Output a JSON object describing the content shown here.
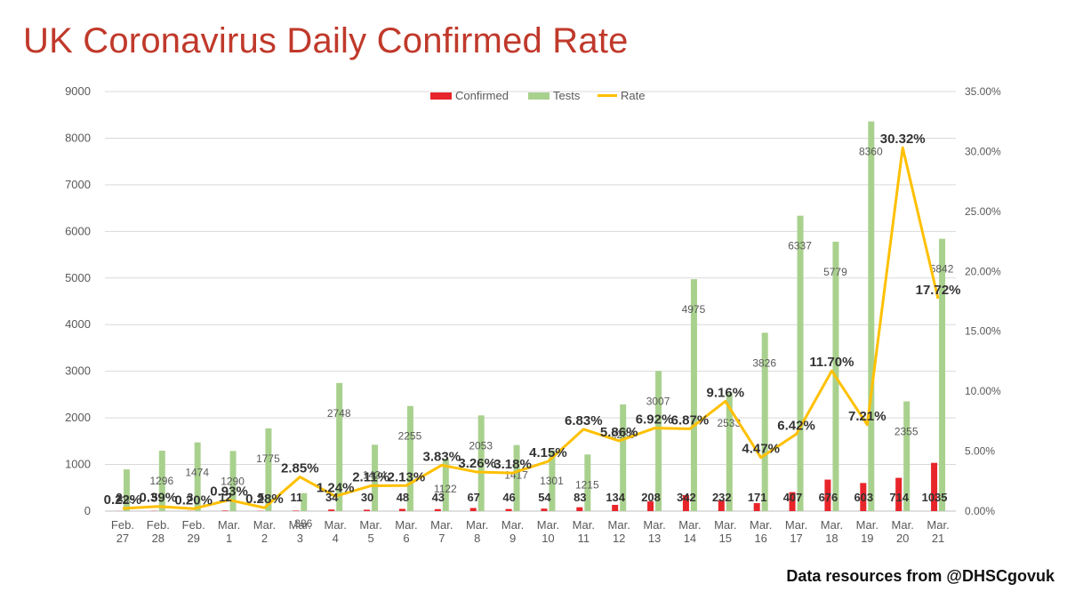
{
  "title": "UK Coronavirus Daily Confirmed Rate",
  "source": "Data resources from @DHSCgovuk",
  "colors": {
    "title": "#c0392b",
    "confirmed": "#e8252a",
    "tests": "#a9d18e",
    "rate": "#ffc000",
    "axis_text": "#595959",
    "grid": "#d9d9d9"
  },
  "chart_data": {
    "type": "bar",
    "categories": [
      "Feb. 27",
      "Feb. 28",
      "Feb. 29",
      "Mar. 1",
      "Mar. 2",
      "Mar. 3",
      "Mar. 4",
      "Mar. 5",
      "Mar. 6",
      "Mar. 7",
      "Mar. 8",
      "Mar. 9",
      "Mar. 10",
      "Mar. 11",
      "Mar. 12",
      "Mar. 13",
      "Mar. 14",
      "Mar. 15",
      "Mar. 16",
      "Mar. 17",
      "Mar. 18",
      "Mar. 19",
      "Mar. 20",
      "Mar. 21"
    ],
    "series": [
      {
        "name": "Confirmed",
        "type": "bar",
        "axis": "left",
        "values": [
          2,
          5,
          3,
          12,
          5,
          11,
          34,
          30,
          48,
          43,
          67,
          46,
          54,
          83,
          134,
          208,
          342,
          232,
          171,
          407,
          676,
          603,
          714,
          1035
        ],
        "labels": [
          "2",
          "5",
          "3",
          "12",
          "5",
          "11",
          "34",
          "30",
          "48",
          "43",
          "67",
          "46",
          "54",
          "83",
          "134",
          "208",
          "342",
          "232",
          "171",
          "407",
          "676",
          "603",
          "714",
          "1035"
        ]
      },
      {
        "name": "Tests",
        "type": "bar",
        "axis": "left",
        "values": [
          895,
          1296,
          1474,
          1290,
          1775,
          386,
          2748,
          1424,
          2255,
          1122,
          2053,
          1417,
          1301,
          1215,
          2288,
          3007,
          4975,
          2533,
          3826,
          6337,
          5779,
          8360,
          2355,
          5842
        ],
        "labels": [
          "895",
          "1296",
          "1474",
          "1290",
          "1775",
          "386",
          "2748",
          "1424",
          "2255",
          "1122",
          "2053",
          "1417",
          "1301",
          "1215",
          "2288",
          "3007",
          "4975",
          "2533",
          "3826",
          "6337",
          "5779",
          "8360",
          "2355",
          "5842"
        ]
      },
      {
        "name": "Rate",
        "type": "line",
        "axis": "right",
        "values": [
          0.22,
          0.39,
          0.2,
          0.93,
          0.28,
          2.85,
          1.24,
          2.11,
          2.13,
          3.83,
          3.26,
          3.18,
          4.15,
          6.83,
          5.86,
          6.92,
          6.87,
          9.16,
          4.47,
          6.42,
          11.7,
          7.21,
          30.32,
          17.72
        ],
        "labels": [
          "0.22%",
          "0.39%",
          "0.20%",
          "0.93%",
          "0.28%",
          "2.85%",
          "1.24%",
          "2.11%",
          "2.13%",
          "3.83%",
          "3.26%",
          "3.18%",
          "4.15%",
          "6.83%",
          "5.86%",
          "6.92%",
          "6.87%",
          "9.16%",
          "4.47%",
          "6.42%",
          "11.70%",
          "7.21%",
          "30.32%",
          "17.72%"
        ]
      }
    ],
    "y_left": {
      "min": 0,
      "max": 9000,
      "ticks": [
        "0",
        "1000",
        "2000",
        "3000",
        "4000",
        "5000",
        "6000",
        "7000",
        "8000",
        "9000"
      ]
    },
    "y_right": {
      "min": 0,
      "max": 35,
      "ticks": [
        "0.00%",
        "5.00%",
        "10.00%",
        "15.00%",
        "20.00%",
        "25.00%",
        "30.00%",
        "35.00%"
      ]
    },
    "legend": {
      "position": "top",
      "entries": [
        "Confirmed",
        "Tests",
        "Rate"
      ]
    },
    "grid": true
  }
}
